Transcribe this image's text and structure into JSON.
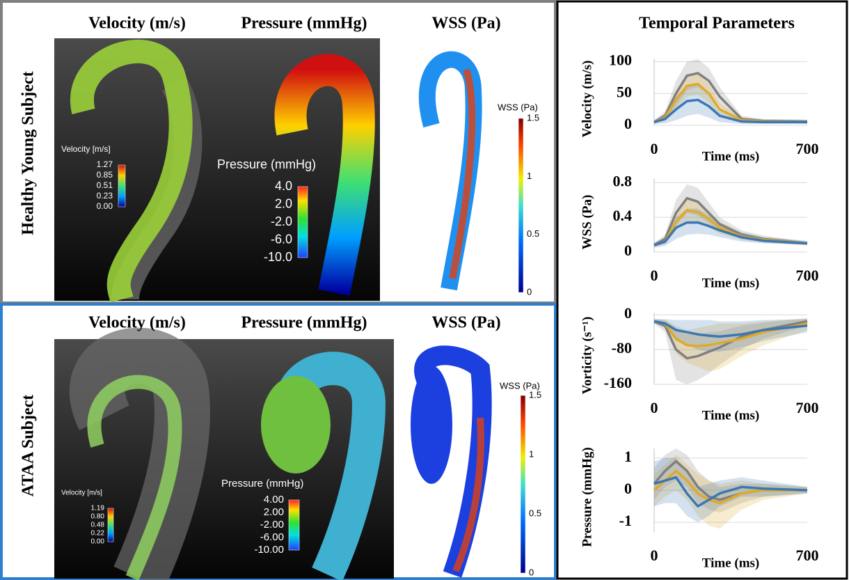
{
  "figure": {
    "right_title": "Temporal Parameters",
    "rows": [
      {
        "label": "Healthy Young Subject",
        "headers": [
          "Velocity (m/s)",
          "Pressure (mmHg)",
          "WSS (Pa)"
        ],
        "velocity_legend": {
          "title": "Velocity [m/s]",
          "ticks": [
            "1.27",
            "0.85",
            "0.51",
            "0.23",
            "0.00"
          ]
        },
        "pressure_legend": {
          "title": "Pressure (mmHg)",
          "ticks": [
            "4.0",
            "2.0",
            "-2.0",
            "-6.0",
            "-10.0"
          ]
        },
        "wss_legend": {
          "title": "WSS (Pa)",
          "ticks": [
            "1.5",
            "1",
            "0.5",
            "0"
          ]
        }
      },
      {
        "label": "ATAA Subject",
        "headers": [
          "Velocity (m/s)",
          "Pressure (mmHg)",
          "WSS (Pa)"
        ],
        "velocity_legend": {
          "title": "Velocity [m/s]",
          "ticks": [
            "1.19",
            "0.80",
            "0.48",
            "0.22",
            "0.00"
          ]
        },
        "pressure_legend": {
          "title": "Pressure (mmHg)",
          "ticks": [
            "4.00",
            "2.00",
            "-2.00",
            "-6.00",
            "-10.00"
          ]
        },
        "wss_legend": {
          "title": "WSS (Pa)",
          "ticks": [
            "1.5",
            "1",
            "0.5",
            "0"
          ]
        }
      }
    ]
  },
  "chart_data": [
    {
      "type": "line",
      "x_label": "Time (ms)",
      "y_label": "Velocity (m/s)",
      "x": [
        0,
        50,
        100,
        150,
        200,
        250,
        300,
        400,
        500,
        700
      ],
      "xlim": [
        0,
        700
      ],
      "xticks": [
        0,
        700
      ],
      "ylim": [
        0,
        105
      ],
      "yticks": [
        0,
        50,
        100
      ],
      "grid": true,
      "series": [
        {
          "color": "#808080",
          "values": [
            5,
            15,
            50,
            78,
            82,
            70,
            45,
            10,
            7,
            6
          ],
          "lower": [
            3,
            8,
            30,
            55,
            60,
            50,
            30,
            5,
            4,
            3
          ],
          "upper": [
            8,
            22,
            70,
            100,
            104,
            90,
            60,
            15,
            10,
            9
          ]
        },
        {
          "color": "#e0aa28",
          "values": [
            5,
            12,
            40,
            62,
            65,
            50,
            25,
            8,
            6,
            5
          ],
          "lower": [
            3,
            7,
            25,
            45,
            48,
            35,
            15,
            5,
            4,
            3
          ],
          "upper": [
            7,
            18,
            55,
            80,
            82,
            65,
            35,
            11,
            8,
            7
          ]
        },
        {
          "color": "#3b77b3",
          "values": [
            5,
            10,
            25,
            38,
            40,
            30,
            15,
            6,
            5,
            5
          ],
          "lower": [
            2,
            3,
            8,
            15,
            18,
            12,
            5,
            2,
            2,
            2
          ],
          "upper": [
            8,
            18,
            45,
            62,
            65,
            50,
            28,
            10,
            8,
            8
          ]
        }
      ]
    },
    {
      "type": "line",
      "x_label": "Time (ms)",
      "y_label": "WSS (Pa)",
      "x": [
        0,
        50,
        100,
        150,
        200,
        250,
        300,
        400,
        500,
        700
      ],
      "xlim": [
        0,
        700
      ],
      "xticks": [
        0,
        700
      ],
      "ylim": [
        0,
        0.85
      ],
      "yticks": [
        0,
        0.4,
        0.8
      ],
      "grid": true,
      "series": [
        {
          "color": "#808080",
          "values": [
            0.08,
            0.15,
            0.45,
            0.62,
            0.58,
            0.45,
            0.32,
            0.2,
            0.15,
            0.1
          ],
          "lower": [
            0.06,
            0.1,
            0.3,
            0.45,
            0.42,
            0.33,
            0.24,
            0.15,
            0.11,
            0.08
          ],
          "upper": [
            0.1,
            0.2,
            0.6,
            0.78,
            0.74,
            0.57,
            0.4,
            0.25,
            0.19,
            0.12
          ]
        },
        {
          "color": "#e0aa28",
          "values": [
            0.08,
            0.12,
            0.35,
            0.48,
            0.46,
            0.38,
            0.28,
            0.18,
            0.14,
            0.1
          ],
          "lower": [
            0.06,
            0.09,
            0.25,
            0.36,
            0.35,
            0.29,
            0.21,
            0.14,
            0.11,
            0.08
          ],
          "upper": [
            0.1,
            0.16,
            0.45,
            0.6,
            0.57,
            0.47,
            0.35,
            0.22,
            0.17,
            0.12
          ]
        },
        {
          "color": "#3b77b3",
          "values": [
            0.08,
            0.12,
            0.28,
            0.34,
            0.34,
            0.3,
            0.25,
            0.17,
            0.13,
            0.1
          ],
          "lower": [
            0.05,
            0.07,
            0.15,
            0.2,
            0.21,
            0.2,
            0.17,
            0.12,
            0.1,
            0.08
          ],
          "upper": [
            0.11,
            0.17,
            0.4,
            0.5,
            0.5,
            0.42,
            0.34,
            0.23,
            0.17,
            0.13
          ]
        }
      ]
    },
    {
      "type": "line",
      "x_label": "Time (ms)",
      "y_label": "Vorticity (s⁻¹)",
      "x": [
        0,
        50,
        100,
        150,
        200,
        250,
        300,
        400,
        500,
        700
      ],
      "xlim": [
        0,
        700
      ],
      "xticks": [
        0,
        700
      ],
      "ylim": [
        -160,
        5
      ],
      "yticks": [
        0,
        -80,
        -160
      ],
      "grid": true,
      "series": [
        {
          "color": "#808080",
          "values": [
            -15,
            -25,
            -80,
            -100,
            -95,
            -85,
            -75,
            -50,
            -35,
            -15
          ],
          "lower": [
            -20,
            -40,
            -150,
            -160,
            -150,
            -135,
            -115,
            -80,
            -55,
            -25
          ],
          "upper": [
            -10,
            -12,
            -30,
            -45,
            -45,
            -40,
            -38,
            -25,
            -18,
            -8
          ]
        },
        {
          "color": "#e0aa28",
          "values": [
            -15,
            -20,
            -55,
            -70,
            -72,
            -70,
            -65,
            -55,
            -40,
            -20
          ],
          "lower": [
            -20,
            -30,
            -90,
            -110,
            -120,
            -130,
            -125,
            -95,
            -70,
            -35
          ],
          "upper": [
            -10,
            -12,
            -25,
            -35,
            -30,
            -25,
            -20,
            -20,
            -15,
            -8
          ]
        },
        {
          "color": "#3b77b3",
          "values": [
            -15,
            -20,
            -35,
            -40,
            -45,
            -48,
            -50,
            -45,
            -35,
            -25
          ],
          "lower": [
            -20,
            -30,
            -60,
            -70,
            -80,
            -85,
            -85,
            -75,
            -60,
            -40
          ],
          "upper": [
            -10,
            -10,
            -12,
            -12,
            -12,
            -12,
            -15,
            -15,
            -12,
            -10
          ]
        }
      ]
    },
    {
      "type": "line",
      "x_label": "Time (ms)",
      "y_label": "Pressure (mmHg)",
      "x": [
        0,
        50,
        100,
        150,
        200,
        250,
        300,
        400,
        500,
        700
      ],
      "xlim": [
        0,
        700
      ],
      "xticks": [
        0,
        700
      ],
      "ylim": [
        -1.3,
        1.3
      ],
      "yticks": [
        1,
        0,
        -1
      ],
      "grid": true,
      "series": [
        {
          "color": "#808080",
          "values": [
            0.2,
            0.6,
            0.9,
            0.6,
            0.1,
            -0.2,
            -0.3,
            -0.1,
            0.0,
            0.0
          ],
          "lower": [
            -0.3,
            0.1,
            0.3,
            0.1,
            -0.4,
            -0.6,
            -0.7,
            -0.4,
            -0.2,
            -0.1
          ],
          "upper": [
            0.7,
            1.1,
            1.3,
            1.1,
            0.6,
            0.3,
            0.1,
            0.2,
            0.2,
            0.1
          ]
        },
        {
          "color": "#e0aa28",
          "values": [
            0.0,
            0.3,
            0.6,
            0.3,
            -0.1,
            -0.3,
            -0.4,
            -0.1,
            0.0,
            0.0
          ],
          "lower": [
            -0.5,
            -0.2,
            0.0,
            -0.3,
            -0.8,
            -1.1,
            -1.2,
            -0.6,
            -0.3,
            -0.1
          ],
          "upper": [
            0.5,
            0.8,
            1.1,
            0.8,
            0.5,
            0.3,
            0.2,
            0.3,
            0.2,
            0.1
          ]
        },
        {
          "color": "#3b77b3",
          "values": [
            0.2,
            0.3,
            0.4,
            -0.1,
            -0.5,
            -0.3,
            -0.1,
            0.1,
            0.05,
            0.0
          ],
          "lower": [
            -0.5,
            -0.4,
            -0.4,
            -0.8,
            -1.0,
            -0.8,
            -0.5,
            -0.2,
            -0.2,
            -0.1
          ],
          "upper": [
            0.9,
            1.0,
            1.0,
            0.6,
            0.1,
            0.2,
            0.3,
            0.4,
            0.3,
            0.1
          ]
        }
      ]
    }
  ]
}
